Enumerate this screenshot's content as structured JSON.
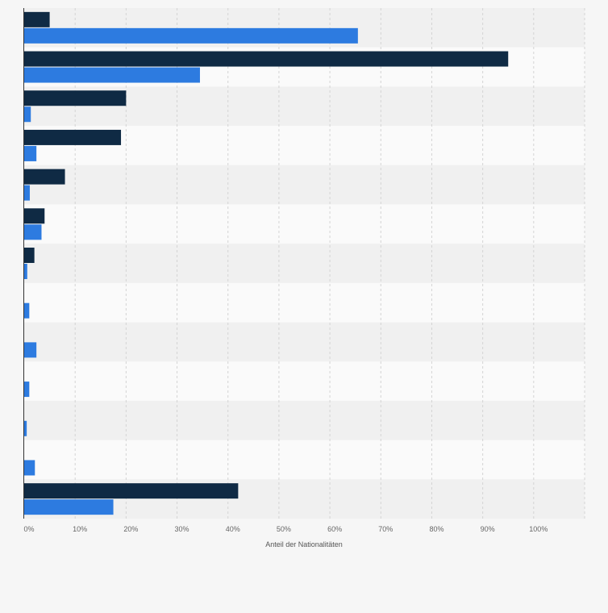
{
  "chart_data": {
    "type": "bar",
    "orientation": "horizontal",
    "categories": [
      "",
      "",
      "",
      "",
      "",
      "",
      "",
      "",
      "",
      "",
      "",
      "",
      ""
    ],
    "series": [
      {
        "color": "#0f2a44",
        "values": [
          5,
          95,
          20,
          19,
          8,
          4,
          2,
          0,
          0,
          0,
          0,
          0,
          42
        ]
      },
      {
        "color": "#2d7be0",
        "values": [
          65.5,
          34.5,
          1.3,
          2.4,
          1.1,
          3.4,
          0.6,
          1.0,
          2.4,
          1.0,
          0.5,
          2.1,
          17.5
        ]
      }
    ],
    "xlim": [
      0,
      110
    ],
    "x_ticks": [
      "0%",
      "10%",
      "20%",
      "30%",
      "40%",
      "50%",
      "60%",
      "70%",
      "80%",
      "90%",
      "100%"
    ],
    "x_tick_values": [
      0,
      10,
      20,
      30,
      40,
      50,
      60,
      70,
      80,
      90,
      100
    ],
    "xlabel": "Anteil der Nationalitäten",
    "ylabel": "",
    "grid": true,
    "legend": "none"
  }
}
